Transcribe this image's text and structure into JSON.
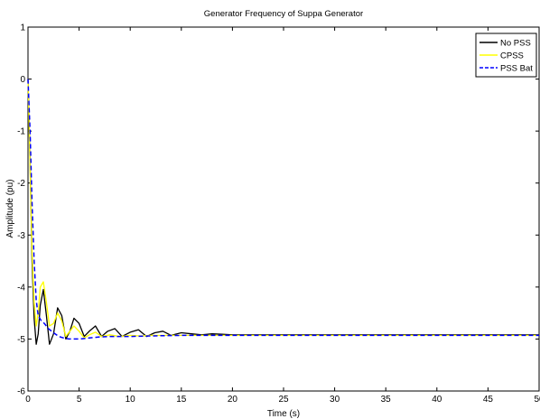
{
  "chart_data": {
    "type": "line",
    "title": "Generator Frequency of Suppa Generator",
    "xlabel": "Time (s)",
    "ylabel": "Amplitude (pu)",
    "xlim": [
      0,
      50
    ],
    "ylim": [
      -6,
      1
    ],
    "xticks": [
      "0",
      "5",
      "10",
      "15",
      "20",
      "25",
      "30",
      "35",
      "40",
      "45",
      "50"
    ],
    "yticks": [
      "1",
      "0",
      "-1",
      "-2",
      "-3",
      "-4",
      "-5",
      "-6"
    ],
    "grid": false,
    "legend_position": "top-right",
    "series": [
      {
        "name": "No PSS",
        "color": "#000000",
        "dash": "solid",
        "x": [
          0,
          0.2,
          0.4,
          0.6,
          0.8,
          1.0,
          1.2,
          1.5,
          1.8,
          2.1,
          2.5,
          2.9,
          3.3,
          3.7,
          4.1,
          4.5,
          5.0,
          5.5,
          6.0,
          6.6,
          7.2,
          7.8,
          8.5,
          9.2,
          10.0,
          10.8,
          11.6,
          12.4,
          13.2,
          14.0,
          15.0,
          16.0,
          17.0,
          18.0,
          19.0,
          20.0,
          22.0,
          25.0,
          30.0,
          35.0,
          40.0,
          45.0,
          50.0
        ],
        "y": [
          0,
          -1.6,
          -3.5,
          -4.6,
          -5.1,
          -4.9,
          -4.35,
          -4.05,
          -4.55,
          -5.1,
          -4.9,
          -4.4,
          -4.55,
          -5.0,
          -4.85,
          -4.6,
          -4.7,
          -4.95,
          -4.85,
          -4.75,
          -4.95,
          -4.85,
          -4.8,
          -4.95,
          -4.87,
          -4.82,
          -4.95,
          -4.88,
          -4.85,
          -4.93,
          -4.88,
          -4.9,
          -4.92,
          -4.9,
          -4.91,
          -4.92,
          -4.92,
          -4.92,
          -4.92,
          -4.92,
          -4.92,
          -4.92,
          -4.92
        ]
      },
      {
        "name": "CPSS",
        "color": "#ffff00",
        "dash": "solid",
        "x": [
          0,
          0.2,
          0.4,
          0.6,
          0.8,
          1.0,
          1.2,
          1.5,
          1.8,
          2.1,
          2.5,
          2.9,
          3.3,
          3.7,
          4.1,
          4.5,
          5.0,
          5.5,
          6.0,
          6.6,
          7.2,
          8.0,
          9.0,
          10.0,
          11.0,
          12.0,
          14.0,
          16.0,
          20.0,
          25.0,
          30.0,
          35.0,
          40.0,
          45.0,
          50.0
        ],
        "y": [
          0,
          -1.7,
          -3.3,
          -4.3,
          -4.75,
          -4.5,
          -4.0,
          -3.9,
          -4.3,
          -4.75,
          -4.7,
          -4.5,
          -4.65,
          -4.95,
          -4.85,
          -4.75,
          -4.85,
          -4.98,
          -4.92,
          -4.87,
          -4.95,
          -4.92,
          -4.95,
          -4.93,
          -4.94,
          -4.93,
          -4.93,
          -4.93,
          -4.93,
          -4.93,
          -4.93,
          -4.93,
          -4.93,
          -4.93,
          -4.93
        ]
      },
      {
        "name": "PSS Bat",
        "color": "#0000ff",
        "dash": "dashed",
        "x": [
          0,
          0.2,
          0.4,
          0.6,
          0.8,
          1.0,
          1.3,
          1.6,
          2.0,
          2.5,
          3.0,
          3.5,
          4.0,
          5.0,
          6.0,
          7.0,
          8.0,
          10.0,
          12.0,
          15.0,
          20.0,
          25.0,
          30.0,
          35.0,
          40.0,
          45.0,
          50.0
        ],
        "y": [
          0,
          -1.0,
          -2.4,
          -3.5,
          -4.25,
          -4.55,
          -4.65,
          -4.7,
          -4.8,
          -4.88,
          -4.95,
          -4.98,
          -5.0,
          -5.0,
          -4.98,
          -4.96,
          -4.95,
          -4.95,
          -4.94,
          -4.93,
          -4.93,
          -4.93,
          -4.93,
          -4.93,
          -4.93,
          -4.93,
          -4.93
        ]
      }
    ]
  }
}
